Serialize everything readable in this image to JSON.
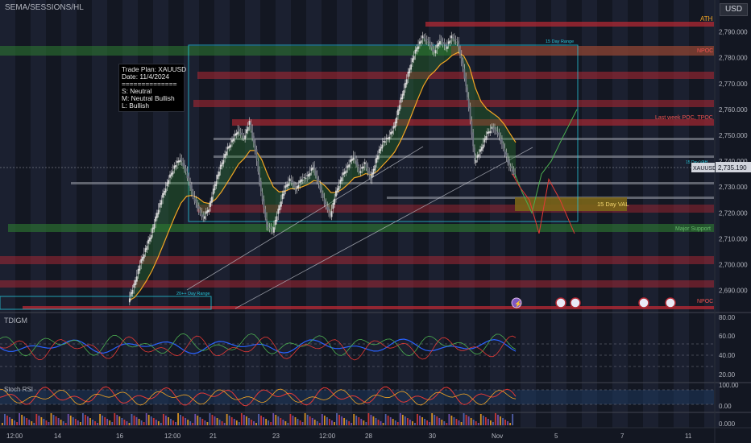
{
  "symbol": "SEMA/SESSIONS/HL",
  "currency": "USD",
  "trade_plan": {
    "title": "Trade Plan: XAUUSD",
    "date": "Date: 11/4/2024",
    "divider": "==============",
    "short": "S: Neutral",
    "medium": "M: Neutral Bullish",
    "long": "L: Bullish"
  },
  "levels": {
    "ath": "ATH",
    "npoc_top": "NPOC",
    "last_week": "Last week POC, TPOC",
    "day_val": "15 Day VAL",
    "major_support": "Major Support",
    "npoc_bottom": "NPOC",
    "day_range": "15 Day Range",
    "range_20": "20++ Day Range",
    "vah_small": "15 Day VAH"
  },
  "price_axis": {
    "ticks": [
      "2,790.000",
      "2,780.000",
      "2,770.000",
      "2,760.000",
      "2,750.000",
      "2,740.000",
      "2,730.000",
      "2,720.000",
      "2,710.000",
      "2,700.000",
      "2,690.000"
    ],
    "current_symbol": "XAUUSD",
    "current_price": "2,735.190"
  },
  "time_axis": [
    "12:00",
    "14",
    "16",
    "12:00",
    "21",
    "23",
    "12:00",
    "28",
    "30",
    "Nov",
    "5",
    "7",
    "11"
  ],
  "indicators": {
    "tdigm": {
      "label": "TDIGM",
      "ticks": [
        "80.00",
        "60.00",
        "40.00",
        "20.00"
      ]
    },
    "stoch": {
      "label": "Stoch RSI",
      "ticks": [
        "100.00",
        "0.00"
      ]
    },
    "volume": {
      "tick": "0.000"
    }
  },
  "colors": {
    "background": "#131722",
    "resistance": "#b22833",
    "support": "#2e7d32",
    "candle": "#d9d9d9",
    "ema_fast": "#4caf50",
    "ema_slow": "#f5a623",
    "projection_green": "#4caf50",
    "projection_red": "#e53935",
    "range_box": "#26c6da",
    "val_zone": "#7a6418"
  },
  "chart_data": {
    "type": "line",
    "title": "",
    "ylim": [
      2683,
      2793
    ],
    "y_ticks": [
      2790,
      2780,
      2770,
      2760,
      2750,
      2740,
      2730,
      2720,
      2710,
      2700,
      2690
    ],
    "series": [
      {
        "name": "XAUUSD",
        "values": [
          2686,
          2692,
          2700,
          2706,
          2712,
          2720,
          2727,
          2733,
          2738,
          2741,
          2736,
          2728,
          2722,
          2718,
          2722,
          2731,
          2738,
          2744,
          2748,
          2752,
          2749,
          2755,
          2744,
          2728,
          2715,
          2713,
          2721,
          2729,
          2733,
          2729,
          2733,
          2734,
          2738,
          2731,
          2724,
          2719,
          2728,
          2734,
          2738,
          2742,
          2736,
          2739,
          2733,
          2741,
          2747,
          2749,
          2753,
          2762,
          2770,
          2778,
          2784,
          2788,
          2786,
          2782,
          2787,
          2784,
          2788,
          2786,
          2776,
          2761,
          2740,
          2744,
          2750,
          2753,
          2751,
          2745,
          2738,
          2735
        ]
      }
    ],
    "projections": {
      "green_path": [
        2735,
        2728,
        2720,
        2735,
        2740,
        2749,
        2760
      ],
      "red_path": [
        2735,
        2730,
        2725,
        2712,
        2733,
        2725,
        2712
      ]
    },
    "horizontal_levels": [
      {
        "label": "ATH",
        "price": 2790
      },
      {
        "label": "NPOC",
        "price": 2780.5
      },
      {
        "label": "Last week POC, TPOC",
        "price": 2751.5
      },
      {
        "label": "15 Day VAL",
        "price": 2723
      },
      {
        "label": "Major Support",
        "price": 2711.5
      },
      {
        "label": "NPOC",
        "price": 2683
      }
    ],
    "current_price": 2735.19
  }
}
